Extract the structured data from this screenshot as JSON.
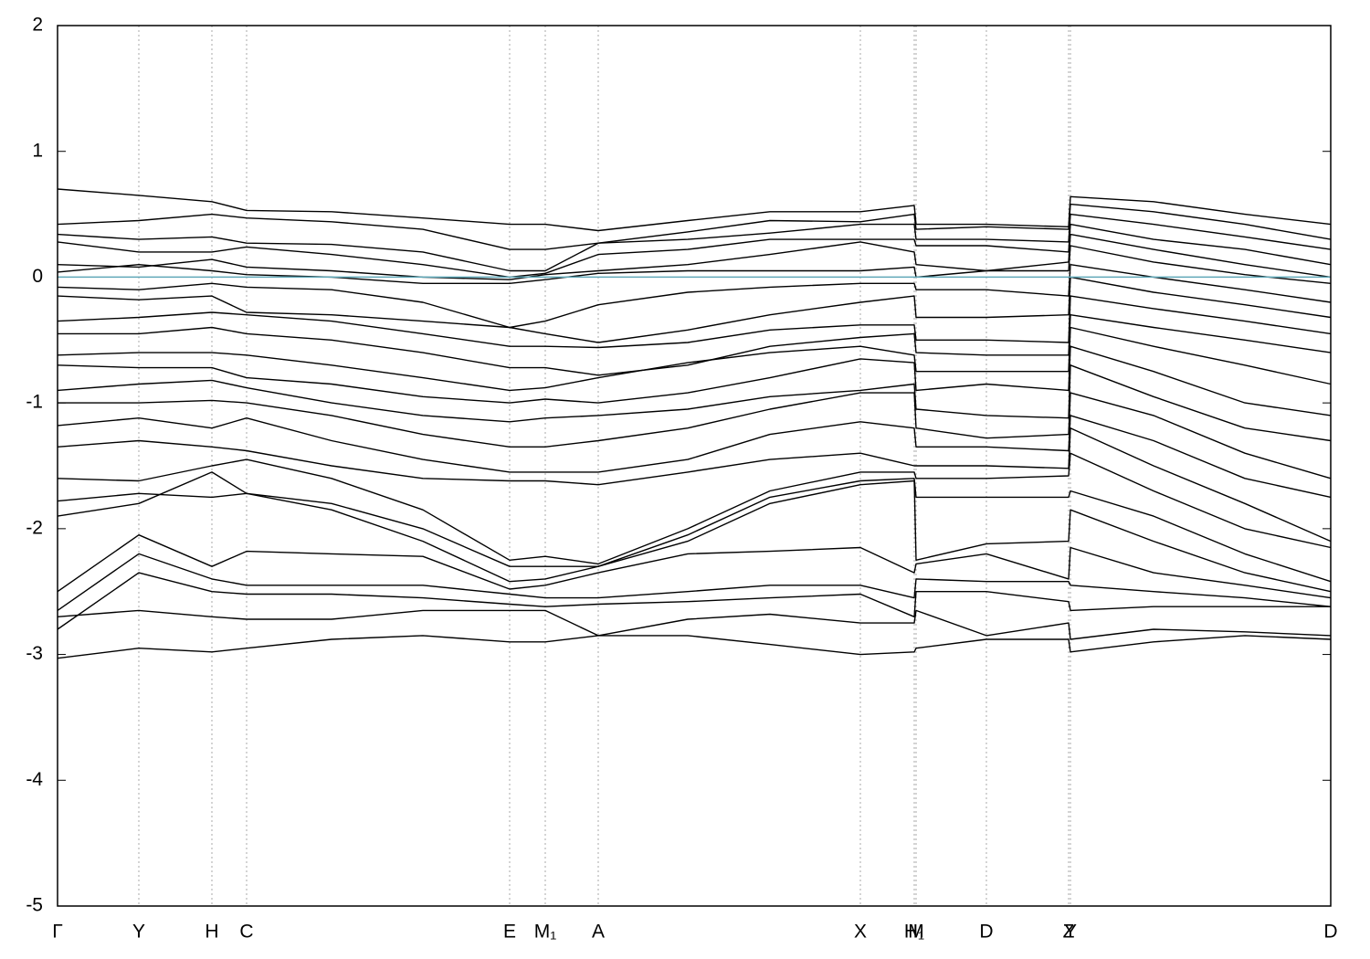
{
  "chart_data": {
    "type": "line",
    "x": [
      0,
      0.89,
      1.69,
      2.07,
      3.0,
      4.0,
      4.95,
      5.34,
      5.92,
      6.9,
      7.8,
      8.79,
      9.38,
      9.4,
      10.17,
      11.07,
      11.09,
      12.0,
      13.0,
      13.94
    ],
    "xlim": [
      0,
      13.94
    ],
    "xticks": [
      {
        "value": 0,
        "label": "Γ"
      },
      {
        "value": 0.89,
        "label": "Y"
      },
      {
        "value": 1.69,
        "label": "H"
      },
      {
        "value": 2.07,
        "label": "C"
      },
      {
        "value": 4.95,
        "label": "E"
      },
      {
        "value": 5.34,
        "label": "M₁"
      },
      {
        "value": 5.92,
        "label": "A"
      },
      {
        "value": 8.79,
        "label": "X"
      },
      {
        "value": 9.38,
        "label": "H₁"
      },
      {
        "value": 9.4,
        "label": "M"
      },
      {
        "value": 10.17,
        "label": "D"
      },
      {
        "value": 11.07,
        "label": "Z"
      },
      {
        "value": 11.09,
        "label": "Y"
      },
      {
        "value": 13.94,
        "label": "D"
      }
    ],
    "ylim": [
      -5,
      2
    ],
    "yticks": [
      -5,
      -4,
      -3,
      -2,
      -1,
      0,
      1,
      2
    ],
    "color": "#000000",
    "hline": {
      "value": 0,
      "color": "#5fa8b8"
    },
    "grid": true,
    "series": [
      {
        "values": [
          0.7,
          0.65,
          0.6,
          0.53,
          0.52,
          0.47,
          0.42,
          0.42,
          0.37,
          0.45,
          0.52,
          0.52,
          0.57,
          0.42,
          0.42,
          0.4,
          0.64,
          0.6,
          0.5,
          0.42
        ]
      },
      {
        "values": [
          0.42,
          0.45,
          0.5,
          0.47,
          0.44,
          0.38,
          0.22,
          0.22,
          0.27,
          0.36,
          0.45,
          0.44,
          0.5,
          0.38,
          0.4,
          0.38,
          0.58,
          0.52,
          0.42,
          0.3
        ]
      },
      {
        "values": [
          0.34,
          0.3,
          0.32,
          0.27,
          0.26,
          0.2,
          0.05,
          0.05,
          0.27,
          0.3,
          0.35,
          0.42,
          0.42,
          0.3,
          0.3,
          0.28,
          0.5,
          0.42,
          0.32,
          0.22
        ]
      },
      {
        "values": [
          0.28,
          0.2,
          0.2,
          0.24,
          0.18,
          0.1,
          0.0,
          0.03,
          0.18,
          0.22,
          0.3,
          0.3,
          0.3,
          0.25,
          0.25,
          0.2,
          0.42,
          0.3,
          0.22,
          0.1
        ]
      },
      {
        "values": [
          0.1,
          0.08,
          0.14,
          0.08,
          0.05,
          0.0,
          -0.02,
          0.02,
          0.05,
          0.1,
          0.18,
          0.28,
          0.2,
          0.1,
          0.05,
          0.12,
          0.34,
          0.22,
          0.1,
          0.0
        ]
      },
      {
        "values": [
          0.04,
          0.1,
          0.05,
          0.02,
          0.0,
          -0.05,
          -0.05,
          -0.02,
          0.03,
          0.05,
          0.05,
          0.05,
          0.08,
          0.0,
          0.05,
          0.05,
          0.25,
          0.12,
          0.02,
          -0.05
        ]
      },
      {
        "values": [
          -0.08,
          -0.1,
          -0.05,
          -0.08,
          -0.1,
          -0.2,
          -0.4,
          -0.35,
          -0.22,
          -0.12,
          -0.08,
          -0.05,
          -0.05,
          -0.1,
          -0.1,
          -0.15,
          0.1,
          0.0,
          -0.1,
          -0.2
        ]
      },
      {
        "values": [
          -0.15,
          -0.18,
          -0.15,
          -0.28,
          -0.3,
          -0.35,
          -0.4,
          -0.45,
          -0.52,
          -0.42,
          -0.3,
          -0.2,
          -0.15,
          -0.32,
          -0.32,
          -0.3,
          0.0,
          -0.12,
          -0.22,
          -0.32
        ]
      },
      {
        "values": [
          -0.35,
          -0.32,
          -0.28,
          -0.3,
          -0.35,
          -0.45,
          -0.55,
          -0.55,
          -0.56,
          -0.52,
          -0.42,
          -0.38,
          -0.38,
          -0.5,
          -0.5,
          -0.52,
          -0.15,
          -0.25,
          -0.35,
          -0.45
        ]
      },
      {
        "values": [
          -0.45,
          -0.45,
          -0.4,
          -0.45,
          -0.5,
          -0.6,
          -0.72,
          -0.72,
          -0.78,
          -0.7,
          -0.55,
          -0.48,
          -0.45,
          -0.6,
          -0.62,
          -0.62,
          -0.3,
          -0.4,
          -0.5,
          -0.6
        ]
      },
      {
        "values": [
          -0.62,
          -0.6,
          -0.6,
          -0.62,
          -0.7,
          -0.8,
          -0.9,
          -0.88,
          -0.8,
          -0.68,
          -0.6,
          -0.55,
          -0.62,
          -0.75,
          -0.75,
          -0.75,
          -0.4,
          -0.55,
          -0.7,
          -0.85
        ]
      },
      {
        "values": [
          -0.7,
          -0.72,
          -0.72,
          -0.8,
          -0.85,
          -0.95,
          -1.0,
          -0.97,
          -1.0,
          -0.92,
          -0.8,
          -0.65,
          -0.68,
          -0.9,
          -0.85,
          -0.9,
          -0.55,
          -0.75,
          -1.0,
          -1.1
        ]
      },
      {
        "values": [
          -0.9,
          -0.85,
          -0.82,
          -0.88,
          -1.0,
          -1.1,
          -1.15,
          -1.12,
          -1.1,
          -1.05,
          -0.95,
          -0.9,
          -0.85,
          -1.05,
          -1.1,
          -1.12,
          -0.7,
          -0.95,
          -1.2,
          -1.3
        ]
      },
      {
        "values": [
          -1.0,
          -1.0,
          -0.98,
          -1.0,
          -1.1,
          -1.25,
          -1.35,
          -1.35,
          -1.3,
          -1.2,
          -1.05,
          -0.92,
          -0.92,
          -1.2,
          -1.28,
          -1.25,
          -0.92,
          -1.1,
          -1.4,
          -1.6
        ]
      },
      {
        "values": [
          -1.18,
          -1.12,
          -1.2,
          -1.12,
          -1.3,
          -1.45,
          -1.55,
          -1.55,
          -1.55,
          -1.45,
          -1.25,
          -1.15,
          -1.2,
          -1.35,
          -1.35,
          -1.38,
          -1.1,
          -1.3,
          -1.6,
          -1.75
        ]
      },
      {
        "values": [
          -1.35,
          -1.3,
          -1.35,
          -1.38,
          -1.5,
          -1.6,
          -1.62,
          -1.62,
          -1.65,
          -1.55,
          -1.45,
          -1.4,
          -1.5,
          -1.5,
          -1.5,
          -1.52,
          -1.2,
          -1.5,
          -1.8,
          -2.1
        ]
      },
      {
        "values": [
          -1.6,
          -1.62,
          -1.5,
          -1.45,
          -1.6,
          -1.85,
          -2.25,
          -2.22,
          -2.28,
          -2.0,
          -1.7,
          -1.55,
          -1.55,
          -1.6,
          -1.6,
          -1.58,
          -1.4,
          -1.7,
          -2.0,
          -2.15
        ]
      },
      {
        "values": [
          -1.78,
          -1.72,
          -1.75,
          -1.72,
          -1.8,
          -2.0,
          -2.3,
          -2.3,
          -2.3,
          -2.05,
          -1.75,
          -1.62,
          -1.6,
          -1.75,
          -1.75,
          -1.75,
          -1.7,
          -1.9,
          -2.2,
          -2.42
        ]
      },
      {
        "values": [
          -1.9,
          -1.8,
          -1.55,
          -1.72,
          -1.85,
          -2.1,
          -2.42,
          -2.4,
          -2.3,
          -2.1,
          -1.8,
          -1.65,
          -1.62,
          -2.25,
          -2.12,
          -2.1,
          -1.85,
          -2.1,
          -2.35,
          -2.5
        ]
      },
      {
        "values": [
          -2.5,
          -2.05,
          -2.3,
          -2.18,
          -2.2,
          -2.22,
          -2.48,
          -2.45,
          -2.35,
          -2.2,
          -2.18,
          -2.15,
          -2.35,
          -2.28,
          -2.2,
          -2.4,
          -2.15,
          -2.35,
          -2.45,
          -2.55
        ]
      },
      {
        "values": [
          -2.65,
          -2.2,
          -2.4,
          -2.45,
          -2.45,
          -2.45,
          -2.52,
          -2.55,
          -2.55,
          -2.5,
          -2.45,
          -2.45,
          -2.55,
          -2.4,
          -2.42,
          -2.42,
          -2.45,
          -2.5,
          -2.55,
          -2.62
        ]
      },
      {
        "values": [
          -2.8,
          -2.35,
          -2.5,
          -2.52,
          -2.52,
          -2.55,
          -2.6,
          -2.62,
          -2.6,
          -2.58,
          -2.55,
          -2.52,
          -2.7,
          -2.5,
          -2.5,
          -2.58,
          -2.65,
          -2.62,
          -2.62,
          -2.62
        ]
      },
      {
        "values": [
          -2.7,
          -2.65,
          -2.7,
          -2.72,
          -2.72,
          -2.65,
          -2.65,
          -2.65,
          -2.85,
          -2.72,
          -2.68,
          -2.75,
          -2.75,
          -2.65,
          -2.85,
          -2.75,
          -2.88,
          -2.8,
          -2.82,
          -2.85
        ]
      },
      {
        "values": [
          -3.03,
          -2.95,
          -2.98,
          -2.95,
          -2.88,
          -2.85,
          -2.9,
          -2.9,
          -2.85,
          -2.85,
          -2.92,
          -3.0,
          -2.98,
          -2.95,
          -2.88,
          -2.88,
          -2.98,
          -2.9,
          -2.85,
          -2.88
        ]
      }
    ]
  }
}
